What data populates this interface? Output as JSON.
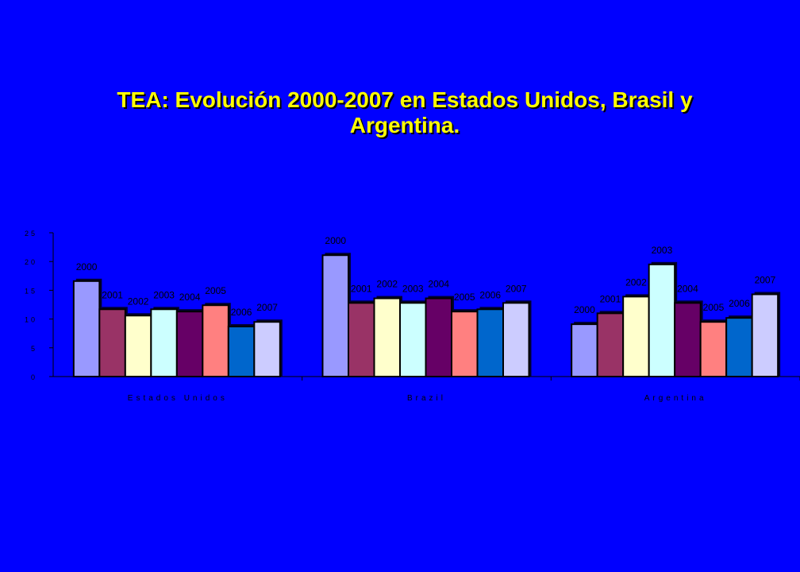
{
  "title_line1": "TEA: Evolución 2000-2007 en Estados Unidos, Brasil y",
  "title_line2": "Argentina.",
  "chart_data": {
    "type": "bar",
    "categories": [
      "Estados Unidos",
      "Brazil",
      "Argentina"
    ],
    "series": [
      {
        "name": "2000",
        "values": [
          16.6,
          21.1,
          9.1
        ]
      },
      {
        "name": "2001",
        "values": [
          11.7,
          12.8,
          11.0
        ]
      },
      {
        "name": "2002",
        "values": [
          10.6,
          13.6,
          13.9
        ]
      },
      {
        "name": "2003",
        "values": [
          11.7,
          12.8,
          19.5
        ]
      },
      {
        "name": "2004",
        "values": [
          11.3,
          13.6,
          12.8
        ]
      },
      {
        "name": "2005",
        "values": [
          12.4,
          11.3,
          9.5
        ]
      },
      {
        "name": "2006",
        "values": [
          8.7,
          11.7,
          10.2
        ]
      },
      {
        "name": "2007",
        "values": [
          9.5,
          12.8,
          14.3
        ]
      }
    ],
    "series_colors": [
      "#9999ff",
      "#993366",
      "#ffffcc",
      "#ccffff",
      "#660066",
      "#ff8080",
      "#0066cc",
      "#ccccff"
    ],
    "ylim": [
      0,
      25
    ],
    "yticks": [
      "0",
      "5",
      "10",
      "15",
      "20",
      "25"
    ],
    "grid": false,
    "legend": "none"
  }
}
